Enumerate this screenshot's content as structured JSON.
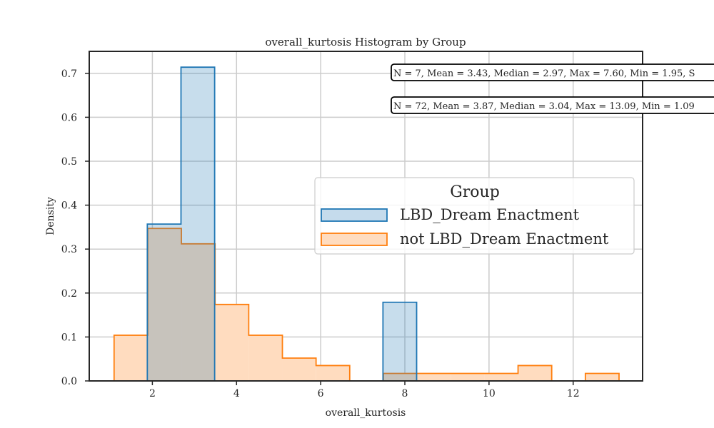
{
  "chart_data": {
    "type": "bar",
    "title": "overall_kurtosis Histogram by Group",
    "xlabel": "overall_kurtosis",
    "ylabel": "Density",
    "xlim": [
      0.5,
      13.65
    ],
    "ylim": [
      0,
      0.75
    ],
    "xticks": [
      2,
      4,
      6,
      8,
      10,
      12
    ],
    "yticks": [
      0.0,
      0.1,
      0.2,
      0.3,
      0.4,
      0.5,
      0.6,
      0.7
    ],
    "grid": true,
    "legend": {
      "title": "Group",
      "placement": "center-right"
    },
    "series": [
      {
        "name": "LBD_Dream Enactment",
        "color": "#1f77b4",
        "fill": "#c5dbec",
        "bins": [
          {
            "x0": 1.88,
            "x1": 2.68,
            "density": 0.357
          },
          {
            "x0": 2.68,
            "x1": 3.48,
            "density": 0.714
          },
          {
            "x0": 7.48,
            "x1": 8.28,
            "density": 0.179
          }
        ],
        "stats": "N = 7, Mean = 3.43, Median = 2.97, Max = 7.60, Min = 1.95, S"
      },
      {
        "name": "not LBD_Dream Enactment",
        "color": "#ff7f0e",
        "fill": "#ffdcbf",
        "bins": [
          {
            "x0": 1.09,
            "x1": 1.89,
            "density": 0.104
          },
          {
            "x0": 1.89,
            "x1": 2.69,
            "density": 0.347
          },
          {
            "x0": 2.69,
            "x1": 3.49,
            "density": 0.312
          },
          {
            "x0": 3.49,
            "x1": 4.29,
            "density": 0.174
          },
          {
            "x0": 4.29,
            "x1": 5.09,
            "density": 0.104
          },
          {
            "x0": 5.09,
            "x1": 5.89,
            "density": 0.052
          },
          {
            "x0": 5.89,
            "x1": 6.69,
            "density": 0.035
          },
          {
            "x0": 6.69,
            "x1": 7.49,
            "density": 0.0
          },
          {
            "x0": 7.49,
            "x1": 8.29,
            "density": 0.017
          },
          {
            "x0": 8.29,
            "x1": 9.09,
            "density": 0.017
          },
          {
            "x0": 9.09,
            "x1": 9.89,
            "density": 0.017
          },
          {
            "x0": 9.89,
            "x1": 10.69,
            "density": 0.017
          },
          {
            "x0": 10.69,
            "x1": 11.49,
            "density": 0.035
          },
          {
            "x0": 11.49,
            "x1": 12.29,
            "density": 0.0
          },
          {
            "x0": 12.29,
            "x1": 13.09,
            "density": 0.017
          }
        ],
        "stats": "N = 72, Mean = 3.87, Median = 3.04, Max = 13.09, Min = 1.09"
      }
    ]
  }
}
